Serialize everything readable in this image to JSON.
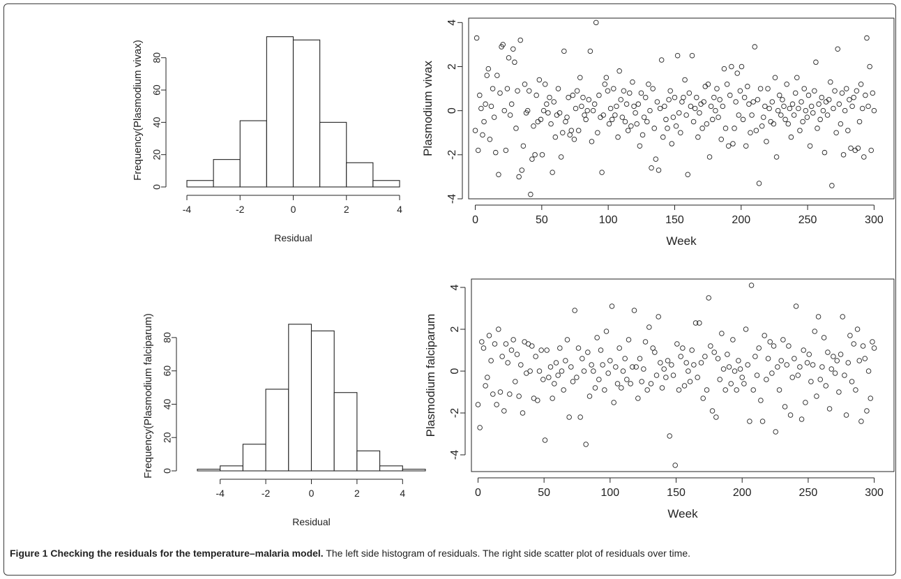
{
  "caption": {
    "label": "Figure 1 Checking the residuals for the temperature–malaria model.",
    "text": "The left side histogram of residuals. The right side scatter plot of residuals over time."
  },
  "chart_data": [
    {
      "id": "hist_vivax",
      "type": "bar",
      "xlabel": "Residual",
      "ylabel": "Frequency(Plasmodium vivax)",
      "bins": [
        [
          -4,
          -3
        ],
        [
          -3,
          -2
        ],
        [
          -2,
          -1
        ],
        [
          -1,
          0
        ],
        [
          0,
          1
        ],
        [
          1,
          2
        ],
        [
          2,
          3
        ],
        [
          3,
          4
        ]
      ],
      "values": [
        4,
        17,
        41,
        93,
        91,
        40,
        15,
        4
      ],
      "xlim": [
        -4,
        4
      ],
      "ylim": [
        0,
        95
      ],
      "xticks": [
        -4,
        -2,
        0,
        2,
        4
      ],
      "yticks": [
        0,
        20,
        40,
        60,
        80
      ]
    },
    {
      "id": "scatter_vivax",
      "type": "scatter",
      "xlabel": "Week",
      "ylabel": "Plasmodium vivax",
      "xlim": [
        -5,
        315
      ],
      "ylim": [
        -4,
        4.2
      ],
      "xticks": [
        0,
        50,
        100,
        150,
        200,
        250,
        300
      ],
      "yticks": [
        -4,
        -2,
        0,
        2,
        4
      ],
      "y": [
        -0.9,
        3.3,
        -1.8,
        0.7,
        0.1,
        -1.1,
        -0.5,
        0.3,
        1.6,
        1.9,
        -1.3,
        0.2,
        1.0,
        -0.3,
        -1.9,
        1.6,
        -2.9,
        0.8,
        2.9,
        3.0,
        0.0,
        -1.8,
        1.0,
        2.4,
        -0.2,
        0.3,
        2.8,
        2.2,
        -0.8,
        0.9,
        -3.0,
        3.2,
        -2.7,
        -1.6,
        1.2,
        -0.1,
        0.0,
        0.9,
        -3.8,
        -2.2,
        -0.7,
        -2.0,
        0.7,
        -0.5,
        1.4,
        -0.4,
        -2.0,
        0.0,
        1.2,
        0.3,
        -0.1,
        0.6,
        -0.6,
        -2.8,
        0.4,
        -1.2,
        -0.2,
        1.0,
        -0.1,
        -2.1,
        -1.0,
        2.7,
        -0.5,
        -0.3,
        0.6,
        -1.1,
        -0.9,
        0.7,
        -1.3,
        0.1,
        0.9,
        -0.9,
        1.5,
        0.2,
        0.6,
        -0.2,
        -0.4,
        0.0,
        0.5,
        2.7,
        -1.4,
        0.0,
        0.3,
        4.0,
        -1.0,
        0.7,
        -0.3,
        -2.8,
        -0.2,
        1.2,
        1.5,
        0.9,
        -0.6,
        0.1,
        -0.4,
        1.0,
        -0.2,
        0.2,
        -1.2,
        1.8,
        0.5,
        -0.3,
        0.9,
        -0.5,
        0.3,
        -0.9,
        0.8,
        -0.7,
        1.3,
        0.2,
        -0.1,
        -0.6,
        0.3,
        -1.6,
        0.8,
        -1.1,
        -0.3,
        0.6,
        -0.5,
        1.2,
        0.0,
        -2.6,
        1.0,
        -0.8,
        -2.2,
        0.4,
        -2.7,
        0.1,
        2.3,
        -1.2,
        0.2,
        -0.4,
        -0.8,
        0.5,
        0.9,
        -1.5,
        -0.3,
        0.6,
        -0.7,
        2.5,
        -0.1,
        -1.0,
        0.4,
        0.6,
        1.4,
        -0.2,
        -2.9,
        0.8,
        0.2,
        2.5,
        -0.5,
        0.1,
        0.6,
        -1.2,
        -0.1,
        0.3,
        -0.8,
        0.4,
        1.1,
        -0.6,
        1.2,
        -2.1,
        0.2,
        -0.4,
        0.6,
        0.0,
        1.0,
        -0.3,
        0.5,
        -1.3,
        0.2,
        1.9,
        -0.8,
        1.2,
        -1.6,
        0.7,
        2.0,
        -1.5,
        -0.8,
        0.4,
        1.7,
        -0.2,
        0.9,
        2.0,
        -0.4,
        0.6,
        -1.6,
        1.1,
        0.3,
        -1.0,
        -0.2,
        0.4,
        2.9,
        -0.9,
        0.5,
        -3.3,
        1.0,
        -0.7,
        -0.3,
        0.2,
        -1.4,
        1.0,
        0.1,
        -0.5,
        0.4,
        -0.6,
        1.5,
        -2.1,
        0.0,
        0.7,
        -0.2,
        0.5,
        0.2,
        -0.4,
        1.2,
        -0.6,
        0.1,
        -1.2,
        0.3,
        -0.2,
        0.8,
        1.5,
        0.1,
        -0.9,
        0.4,
        -0.5,
        1.0,
        0.0,
        -0.3,
        0.7,
        -1.6,
        0.2,
        -0.1,
        0.9,
        2.2,
        -0.8,
        0.3,
        -0.4,
        0.6,
        0.0,
        -1.9,
        0.4,
        -0.2,
        0.5,
        1.3,
        -3.4,
        0.1,
        0.9,
        -1.0,
        2.8,
        0.3,
        -0.6,
        0.8,
        -2.0,
        0.0,
        1.0,
        -0.9,
        0.5,
        -1.7,
        0.2,
        0.6,
        -1.8,
        0.9,
        -1.7,
        -0.5,
        1.2,
        0.1,
        -2.1,
        0.7,
        3.3,
        0.2,
        2.0,
        -1.8,
        0.8,
        0.0
      ]
    },
    {
      "id": "hist_falciparum",
      "type": "bar",
      "xlabel": "Residual",
      "ylabel": "Frequency(Plasmodium falciparum)",
      "bins": [
        [
          -5,
          -4
        ],
        [
          -4,
          -3
        ],
        [
          -3,
          -2
        ],
        [
          -2,
          -1
        ],
        [
          -1,
          0
        ],
        [
          0,
          1
        ],
        [
          1,
          2
        ],
        [
          2,
          3
        ],
        [
          3,
          4
        ],
        [
          4,
          5
        ]
      ],
      "values": [
        1,
        3,
        16,
        49,
        88,
        84,
        47,
        12,
        3,
        1
      ],
      "xlim": [
        -5,
        5
      ],
      "ylim": [
        0,
        90
      ],
      "xticks": [
        -4,
        -2,
        0,
        2,
        4
      ],
      "yticks": [
        0,
        20,
        40,
        60,
        80
      ]
    },
    {
      "id": "scatter_falciparum",
      "type": "scatter",
      "xlabel": "Week",
      "ylabel": "Plasmodium falciparum",
      "xlim": [
        -5,
        315
      ],
      "ylim": [
        -4.8,
        4.4
      ],
      "xticks": [
        0,
        50,
        100,
        150,
        200,
        250,
        300
      ],
      "yticks": [
        -4,
        -2,
        0,
        2,
        4
      ],
      "y": [
        -1.6,
        -2.7,
        1.4,
        1.1,
        -0.7,
        -0.3,
        1.7,
        0.5,
        -1.1,
        1.3,
        -1.6,
        2.0,
        -1.0,
        0.7,
        -1.9,
        1.3,
        0.4,
        -1.1,
        1.0,
        1.5,
        -0.5,
        0.8,
        -1.2,
        0.3,
        -2.0,
        1.4,
        -0.1,
        1.3,
        0.0,
        1.2,
        -1.3,
        0.7,
        -1.4,
        0.0,
        1.0,
        -0.4,
        -3.3,
        1.0,
        -0.3,
        0.2,
        -1.3,
        -0.6,
        0.4,
        -0.2,
        1.1,
        0.0,
        -0.9,
        0.5,
        1.5,
        -2.2,
        0.2,
        -0.5,
        2.9,
        -0.3,
        1.1,
        -2.2,
        0.6,
        0.0,
        -3.5,
        0.9,
        -1.2,
        0.3,
        0.0,
        -0.8,
        1.6,
        -0.4,
        1.0,
        0.3,
        -0.9,
        1.9,
        -0.1,
        0.5,
        3.1,
        -1.5,
        0.2,
        -0.6,
        1.1,
        -0.8,
        0.0,
        0.6,
        -0.4,
        1.5,
        -0.6,
        0.2,
        2.9,
        0.2,
        -1.3,
        0.6,
        -0.5,
        0.1,
        1.4,
        -0.9,
        2.1,
        -0.6,
        1.1,
        0.9,
        -0.2,
        2.6,
        0.4,
        -0.8,
        0.1,
        -0.3,
        0.5,
        -3.1,
        0.3,
        -0.2,
        -4.5,
        1.3,
        -0.9,
        0.7,
        1.1,
        -0.7,
        0.4,
        0.0,
        -0.5,
        1.0,
        0.3,
        2.3,
        -0.3,
        2.3,
        0.4,
        -1.3,
        0.7,
        -0.9,
        3.5,
        1.2,
        -1.9,
        0.9,
        -2.2,
        0.6,
        -0.4,
        1.8,
        0.1,
        -0.9,
        0.8,
        0.2,
        -0.6,
        1.5,
        0.0,
        -0.9,
        0.5,
        0.1,
        -0.3,
        -0.6,
        2.0,
        0.3,
        -2.4,
        4.1,
        -0.9,
        0.7,
        -0.2,
        1.1,
        -1.4,
        -2.4,
        1.7,
        -0.4,
        0.6,
        1.4,
        -0.1,
        1.2,
        -2.9,
        0.2,
        -0.9,
        0.5,
        1.5,
        -1.7,
        0.3,
        1.2,
        -2.1,
        -0.3,
        0.6,
        3.1,
        -0.2,
        0.2,
        -2.3,
        1.0,
        -1.5,
        0.4,
        0.8,
        -0.5,
        0.3,
        1.9,
        -1.2,
        2.6,
        -0.4,
        0.2,
        1.6,
        -0.7,
        0.9,
        -1.8,
        0.1,
        0.7,
        -0.1,
        0.5,
        -1.0,
        0.8,
        2.6,
        -0.2,
        -2.1,
        0.4,
        1.7,
        -0.5,
        1.3,
        -0.9,
        2.0,
        0.5,
        -2.4,
        1.2,
        0.6,
        -1.9,
        0.0,
        -1.3,
        1.4,
        1.1
      ]
    }
  ]
}
